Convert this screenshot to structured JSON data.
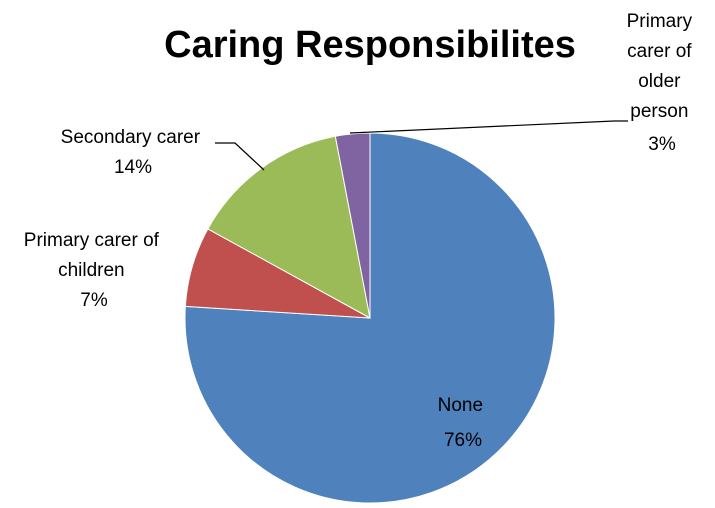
{
  "chart_data": {
    "type": "pie",
    "title": "Caring Responsibilites",
    "start_angle_deg": 0,
    "direction": "clockwise",
    "slices": [
      {
        "label": "None",
        "value": 76,
        "value_label": "76%",
        "color": "#4f81bd"
      },
      {
        "label": "Primary carer of children",
        "value": 7,
        "value_label": "7%",
        "color": "#c0504d"
      },
      {
        "label": "Secondary carer",
        "value": 14,
        "value_label": "14%",
        "color": "#9bbb59"
      },
      {
        "label": "Primary carer of older person",
        "value": 3,
        "value_label": "3%",
        "color": "#8064a2"
      }
    ],
    "legend": "none"
  }
}
